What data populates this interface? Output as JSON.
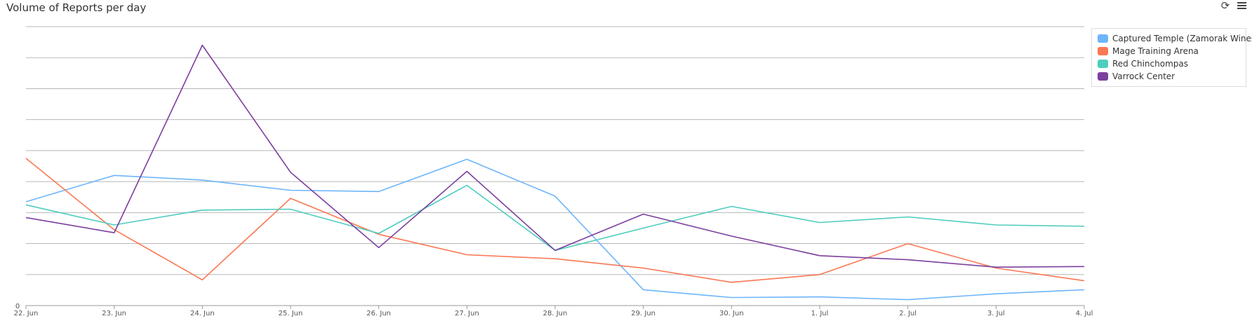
{
  "title": "Volume of Reports per day",
  "toolbar": {
    "refresh_icon": "refresh-icon",
    "menu_icon": "hamburger-menu-icon"
  },
  "chart_data": {
    "type": "line",
    "title": "Volume of Reports per day",
    "xlabel": "",
    "ylabel": "",
    "categories": [
      "22. Jun",
      "23. Jun",
      "24. Jun",
      "25. Jun",
      "26. Jun",
      "27. Jun",
      "28. Jun",
      "29. Jun",
      "30. Jun",
      "1. Jul",
      "2. Jul",
      "3. Jul",
      "4. Jul"
    ],
    "y_tick_labels": [
      "0"
    ],
    "ylim": [
      0,
      9
    ],
    "grid": true,
    "legend_position": "top-right",
    "series": [
      {
        "name": "Captured Temple (Zamorak Wines)",
        "color": "#6db5fb",
        "values": [
          3.35,
          4.2,
          4.05,
          3.72,
          3.68,
          4.72,
          3.53,
          0.51,
          0.26,
          0.28,
          0.19,
          0.38,
          0.51
        ]
      },
      {
        "name": "Mage Training Arena",
        "color": "#fb7753",
        "values": [
          4.75,
          2.45,
          0.83,
          3.46,
          2.3,
          1.64,
          1.51,
          1.21,
          0.75,
          1.0,
          2.0,
          1.21,
          0.8
        ]
      },
      {
        "name": "Red Chinchompas",
        "color": "#4ecdbe",
        "values": [
          3.25,
          2.6,
          3.08,
          3.11,
          2.33,
          3.88,
          1.78,
          2.5,
          3.2,
          2.68,
          2.86,
          2.6,
          2.56
        ]
      },
      {
        "name": "Varrock Center",
        "color": "#7c3f9e",
        "values": [
          2.84,
          2.35,
          8.4,
          4.3,
          1.87,
          4.33,
          1.78,
          2.95,
          2.24,
          1.61,
          1.48,
          1.24,
          1.26
        ]
      }
    ]
  }
}
